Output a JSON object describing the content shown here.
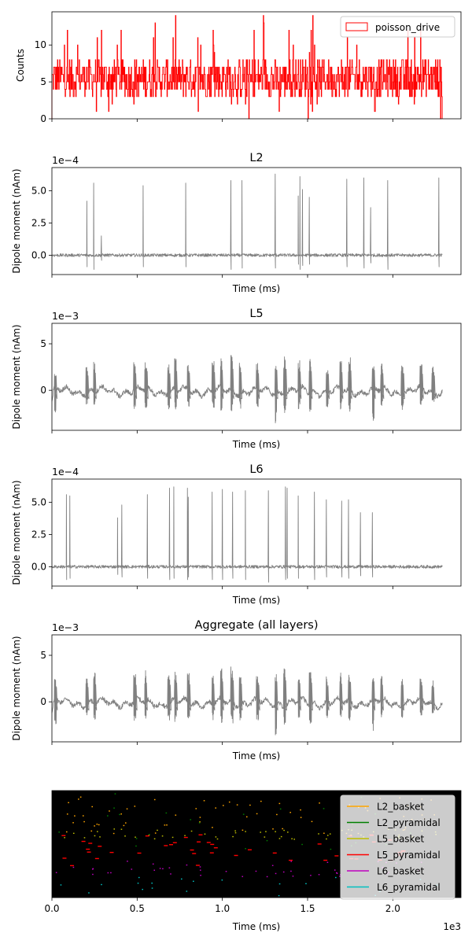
{
  "x_axis": {
    "label": "Time (ms)",
    "ticks": [
      0.0,
      0.5,
      1.0,
      1.5,
      2.0
    ],
    "tick_labels": [
      "0.0",
      "0.5",
      "1.0",
      "1.5",
      "2.0"
    ],
    "offset_text": "1e3",
    "range": [
      0,
      2400
    ],
    "data_end": 2290
  },
  "colors": {
    "drive": "#ff0000",
    "dipole": "#808080",
    "raster_bg": "#000000",
    "legend_bg": "#ffffff",
    "L2_basket": "#ffa500",
    "L2_pyramidal": "#008000",
    "L5_basket": "#bfbf00",
    "L5_pyramidal": "#ff0000",
    "L6_basket": "#bf00bf",
    "L6_pyramidal": "#00bfbf"
  },
  "chart_data": [
    {
      "type": "bar",
      "id": "drive",
      "title": "",
      "ylabel": "Counts",
      "ylim": [
        0,
        14.5
      ],
      "yticks": [
        0,
        5,
        10
      ],
      "ytick_labels": [
        "0",
        "5",
        "10"
      ],
      "legend": {
        "label": "poisson_drive",
        "position": "top-right"
      },
      "series": [
        {
          "name": "poisson_drive",
          "typical_range": [
            3,
            8
          ],
          "max": 14,
          "min": 0
        }
      ]
    },
    {
      "type": "line",
      "id": "L2",
      "title": "L2",
      "ylabel": "Dipole moment (nAm)",
      "xlabel": "Time (ms)",
      "offset_text": "1e−4",
      "ylim": [
        -1.5,
        6.8
      ],
      "yticks": [
        0.0,
        2.5,
        5.0
      ],
      "ytick_labels": [
        "0.0",
        "2.5",
        "5.0"
      ],
      "baseline_noise": 0.12,
      "spikes": [
        {
          "t": 205,
          "peak": 4.2,
          "trough": -0.9
        },
        {
          "t": 245,
          "peak": 5.6,
          "trough": -1.1
        },
        {
          "t": 290,
          "peak": 1.5,
          "trough": -0.4
        },
        {
          "t": 535,
          "peak": 5.4,
          "trough": -0.9
        },
        {
          "t": 785,
          "peak": 5.6,
          "trough": -0.9
        },
        {
          "t": 1050,
          "peak": 5.8,
          "trough": -1.1
        },
        {
          "t": 1115,
          "peak": 5.8,
          "trough": -1.0
        },
        {
          "t": 1310,
          "peak": 6.3,
          "trough": -1.0
        },
        {
          "t": 1445,
          "peak": 4.6,
          "trough": -0.7
        },
        {
          "t": 1455,
          "peak": 6.1,
          "trough": -1.1
        },
        {
          "t": 1470,
          "peak": 5.1,
          "trough": -0.8
        },
        {
          "t": 1510,
          "peak": 4.5,
          "trough": -0.7
        },
        {
          "t": 1730,
          "peak": 5.9,
          "trough": -0.9
        },
        {
          "t": 1830,
          "peak": 6.0,
          "trough": -1.0
        },
        {
          "t": 1870,
          "peak": 3.7,
          "trough": -0.6
        },
        {
          "t": 1970,
          "peak": 5.8,
          "trough": -1.1
        },
        {
          "t": 2270,
          "peak": 6.0,
          "trough": -0.9
        }
      ]
    },
    {
      "type": "line",
      "id": "L5",
      "title": "L5",
      "ylabel": "Dipole moment (nAm)",
      "xlabel": "Time (ms)",
      "offset_text": "1e−3",
      "ylim": [
        -4.3,
        7.2
      ],
      "yticks": [
        0,
        5
      ],
      "ytick_labels": [
        "0",
        "5"
      ],
      "baseline_noise": 0.25,
      "bursts": [
        {
          "t": 15,
          "peak": 2.6,
          "trough": -2.4
        },
        {
          "t": 200,
          "peak": 2.6,
          "trough": -1.5
        },
        {
          "t": 245,
          "peak": 3.1,
          "trough": -1.9
        },
        {
          "t": 480,
          "peak": 3.0,
          "trough": -2.0
        },
        {
          "t": 545,
          "peak": 3.4,
          "trough": -2.1
        },
        {
          "t": 680,
          "peak": 3.0,
          "trough": -2.0
        },
        {
          "t": 720,
          "peak": 3.4,
          "trough": -2.2
        },
        {
          "t": 795,
          "peak": 3.1,
          "trough": -2.0
        },
        {
          "t": 940,
          "peak": 3.2,
          "trough": -2.0
        },
        {
          "t": 990,
          "peak": 3.6,
          "trough": -2.4
        },
        {
          "t": 1050,
          "peak": 3.8,
          "trough": -2.3
        },
        {
          "t": 1100,
          "peak": 3.2,
          "trough": -2.0
        },
        {
          "t": 1200,
          "peak": 3.0,
          "trough": -2.0
        },
        {
          "t": 1310,
          "peak": 3.6,
          "trough": -3.6
        },
        {
          "t": 1360,
          "peak": 3.8,
          "trough": -2.5
        },
        {
          "t": 1445,
          "peak": 3.3,
          "trough": -2.2
        },
        {
          "t": 1510,
          "peak": 3.4,
          "trough": -2.4
        },
        {
          "t": 1610,
          "peak": 2.9,
          "trough": -2.0
        },
        {
          "t": 1690,
          "peak": 3.2,
          "trough": -2.1
        },
        {
          "t": 1740,
          "peak": 3.5,
          "trough": -2.3
        },
        {
          "t": 1880,
          "peak": 3.6,
          "trough": -3.4
        },
        {
          "t": 1930,
          "peak": 3.0,
          "trough": -2.0
        },
        {
          "t": 2050,
          "peak": 3.0,
          "trough": -2.2
        },
        {
          "t": 2160,
          "peak": 2.9,
          "trough": -1.7
        },
        {
          "t": 2230,
          "peak": 2.6,
          "trough": -1.3
        }
      ]
    },
    {
      "type": "line",
      "id": "L6",
      "title": "L6",
      "ylabel": "Dipole moment (nAm)",
      "xlabel": "Time (ms)",
      "offset_text": "1e−4",
      "ylim": [
        -1.5,
        6.8
      ],
      "yticks": [
        0.0,
        2.5,
        5.0
      ],
      "ytick_labels": [
        "0.0",
        "2.5",
        "5.0"
      ],
      "baseline_noise": 0.12,
      "spikes": [
        {
          "t": 85,
          "peak": 5.6,
          "trough": -1.0
        },
        {
          "t": 105,
          "peak": 5.5,
          "trough": -0.9
        },
        {
          "t": 385,
          "peak": 3.8,
          "trough": -0.6
        },
        {
          "t": 410,
          "peak": 4.8,
          "trough": -0.8
        },
        {
          "t": 560,
          "peak": 5.6,
          "trough": -0.9
        },
        {
          "t": 690,
          "peak": 6.1,
          "trough": -1.0
        },
        {
          "t": 715,
          "peak": 6.2,
          "trough": -0.9
        },
        {
          "t": 795,
          "peak": 6.1,
          "trough": -1.0
        },
        {
          "t": 800,
          "peak": 5.4,
          "trough": -0.8
        },
        {
          "t": 940,
          "peak": 5.8,
          "trough": -1.0
        },
        {
          "t": 1000,
          "peak": 6.0,
          "trough": -1.0
        },
        {
          "t": 1060,
          "peak": 5.8,
          "trough": -0.9
        },
        {
          "t": 1135,
          "peak": 5.9,
          "trough": -1.0
        },
        {
          "t": 1270,
          "peak": 5.9,
          "trough": -1.2
        },
        {
          "t": 1370,
          "peak": 6.2,
          "trough": -1.0
        },
        {
          "t": 1380,
          "peak": 6.1,
          "trough": -0.9
        },
        {
          "t": 1445,
          "peak": 5.5,
          "trough": -0.9
        },
        {
          "t": 1540,
          "peak": 5.8,
          "trough": -1.0
        },
        {
          "t": 1610,
          "peak": 5.2,
          "trough": -0.8
        },
        {
          "t": 1700,
          "peak": 5.1,
          "trough": -0.8
        },
        {
          "t": 1740,
          "peak": 5.2,
          "trough": -0.9
        },
        {
          "t": 1810,
          "peak": 4.2,
          "trough": -0.7
        },
        {
          "t": 1880,
          "peak": 4.2,
          "trough": -0.8
        }
      ]
    },
    {
      "type": "line",
      "id": "aggregate",
      "title": "Aggregate (all layers)",
      "ylabel": "Dipole moment (nAm)",
      "xlabel": "Time (ms)",
      "offset_text": "1e−3",
      "ylim": [
        -4.3,
        7.2
      ],
      "yticks": [
        0,
        5
      ],
      "ytick_labels": [
        "0",
        "5"
      ],
      "source": "L5"
    },
    {
      "type": "scatter",
      "id": "raster",
      "title": "",
      "xlabel": "Time (ms)",
      "ylim": [
        0,
        100
      ],
      "legend": {
        "position": "right",
        "entries": [
          "L2_basket",
          "L2_pyramidal",
          "L5_basket",
          "L5_pyramidal",
          "L6_basket",
          "L6_pyramidal"
        ]
      },
      "cell_bands": {
        "L2_basket": [
          60,
          95
        ],
        "L2_pyramidal": [
          45,
          98
        ],
        "L5_basket": [
          55,
          65
        ],
        "L5_pyramidal": [
          30,
          60
        ],
        "L6_basket": [
          20,
          35
        ],
        "L6_pyramidal": [
          2,
          20
        ]
      },
      "spike_counts": {
        "L2_basket": 70,
        "L2_pyramidal": 25,
        "L5_basket": 55,
        "L5_pyramidal": 45,
        "L6_basket": 45,
        "L6_pyramidal": 20
      }
    }
  ]
}
